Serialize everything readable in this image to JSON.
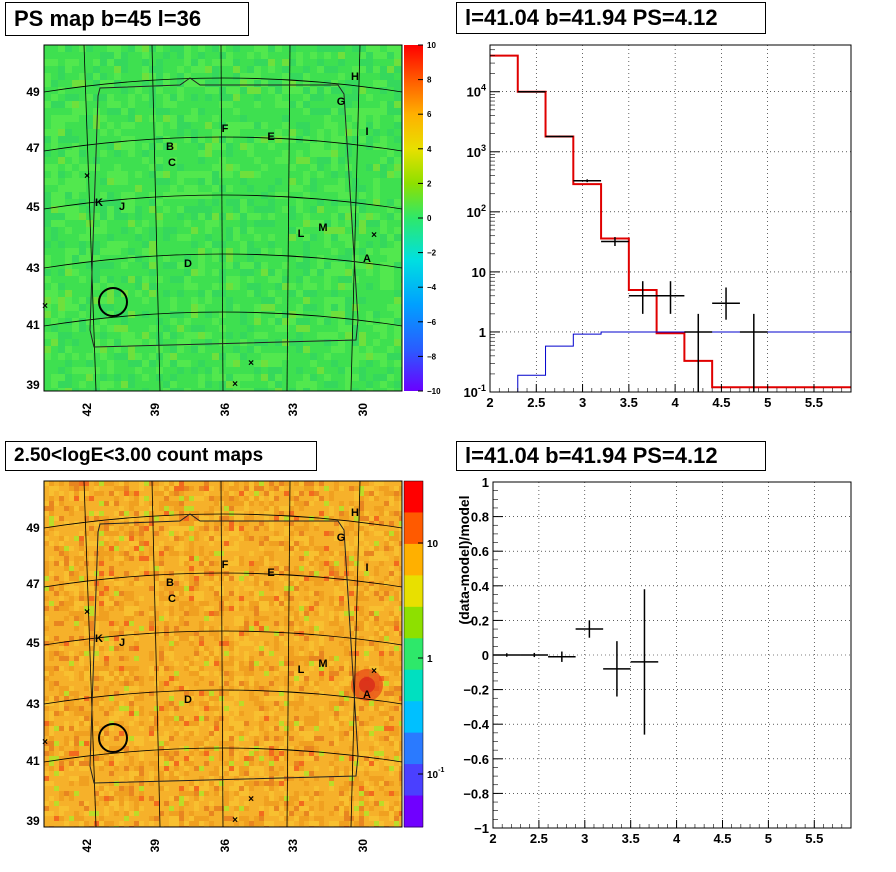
{
  "panels": {
    "ps_map_title": "PS map b=45 l=36",
    "spectrum_title": "l=41.04 b=41.94 PS=4.12",
    "count_map_title": "2.50<logE<3.00 count maps",
    "residual_title": "l=41.04 b=41.94 PS=4.12"
  },
  "chart_data": [
    {
      "type": "heatmap",
      "title": "PS map b=45 l=36",
      "x_ticks": [
        "42",
        "39",
        "36",
        "33",
        "30"
      ],
      "y_ticks": [
        "49",
        "47",
        "45",
        "43",
        "41",
        "39"
      ],
      "colorbar": {
        "range": [
          -10,
          10
        ],
        "ticks": [
          "10",
          "8",
          "6",
          "4",
          "2",
          "0",
          "−2",
          "−4",
          "−6",
          "−8",
          "−10"
        ]
      },
      "source_labels": [
        "H",
        "G",
        "F",
        "E",
        "I",
        "B",
        "C",
        "K",
        "J",
        "L",
        "M",
        "D",
        "A"
      ],
      "colors": {
        "background": "#3ee050",
        "grid": "#000000"
      }
    },
    {
      "type": "line",
      "title": "l=41.04 b=41.94 PS=4.12",
      "x_ticks": [
        "2",
        "2.5",
        "3",
        "3.5",
        "4",
        "4.5",
        "5",
        "5.5"
      ],
      "y_scale": "log",
      "y_ticks": [
        "10^{-1}",
        "1",
        "10",
        "10^{2}",
        "10^{3}",
        "10^{4}"
      ],
      "xlim": [
        2.0,
        5.9
      ],
      "ylim": [
        0.1,
        60000
      ],
      "series": [
        {
          "type": "step",
          "color": "#e00000",
          "x_edges": [
            2.0,
            2.3,
            2.6,
            2.9,
            3.2,
            3.5,
            3.8,
            4.1,
            4.4,
            5.9
          ],
          "values": [
            40000,
            10000,
            1800,
            290,
            36,
            5,
            0.95,
            0.33,
            0.12
          ]
        },
        {
          "type": "step",
          "color": "#0000cc",
          "x_edges": [
            2.0,
            2.3,
            2.6,
            2.9,
            3.2,
            5.9
          ],
          "values": [
            0.09,
            0.19,
            0.58,
            0.92,
            1.0
          ]
        },
        {
          "type": "errorbars",
          "color": "#000000",
          "points": [
            {
              "x": 2.45,
              "y": 10000,
              "xerr": 0.15,
              "ylo": 9800,
              "yhi": 10200
            },
            {
              "x": 2.75,
              "y": 1800,
              "xerr": 0.15,
              "ylo": 1760,
              "yhi": 1840
            },
            {
              "x": 3.05,
              "y": 330,
              "xerr": 0.15,
              "ylo": 312,
              "yhi": 348
            },
            {
              "x": 3.35,
              "y": 32,
              "xerr": 0.15,
              "ylo": 27,
              "yhi": 38
            },
            {
              "x": 3.65,
              "y": 4,
              "xerr": 0.15,
              "ylo": 2,
              "yhi": 7
            },
            {
              "x": 3.95,
              "y": 4,
              "xerr": 0.15,
              "ylo": 2,
              "yhi": 7
            },
            {
              "x": 4.25,
              "y": 1,
              "xerr": 0.15,
              "ylo": 0.1,
              "yhi": 2
            },
            {
              "x": 4.55,
              "y": 3,
              "xerr": 0.15,
              "ylo": 1.6,
              "yhi": 5.5
            },
            {
              "x": 4.85,
              "y": 1,
              "xerr": 0.15,
              "ylo": 0.1,
              "yhi": 2
            }
          ]
        }
      ]
    },
    {
      "type": "heatmap",
      "title": "2.50<logE<3.00 count maps",
      "x_ticks": [
        "42",
        "39",
        "36",
        "33",
        "30"
      ],
      "y_ticks": [
        "49",
        "47",
        "45",
        "43",
        "41",
        "39"
      ],
      "colorbar": {
        "scale": "log",
        "ticks": [
          "10",
          "1",
          "10^{-1}"
        ]
      },
      "source_labels": [
        "H",
        "G",
        "F",
        "E",
        "I",
        "B",
        "C",
        "K",
        "J",
        "L",
        "M",
        "D",
        "A"
      ],
      "colors": {
        "background": "#f6b12a",
        "grid": "#000000"
      }
    },
    {
      "type": "scatter",
      "title": "l=41.04 b=41.94 PS=4.12",
      "ylabel": "(data-model)/model",
      "x_ticks": [
        "2",
        "2.5",
        "3",
        "3.5",
        "4",
        "4.5",
        "5",
        "5.5"
      ],
      "y_ticks": [
        "1",
        "0.8",
        "0.6",
        "0.4",
        "0.2",
        "0",
        "−0.2",
        "−0.4",
        "−0.6",
        "−0.8",
        "−1"
      ],
      "xlim": [
        2.0,
        5.9
      ],
      "ylim": [
        -1,
        1
      ],
      "points": [
        {
          "x": 2.15,
          "y": 0.0,
          "xerr": 0.15,
          "yerr": 0.01
        },
        {
          "x": 2.45,
          "y": 0.0,
          "xerr": 0.15,
          "yerr": 0.012
        },
        {
          "x": 2.75,
          "y": -0.01,
          "xerr": 0.15,
          "yerr": 0.03
        },
        {
          "x": 3.05,
          "y": 0.15,
          "xerr": 0.15,
          "yerr": 0.05
        },
        {
          "x": 3.35,
          "y": -0.08,
          "xerr": 0.15,
          "yerr": 0.16
        },
        {
          "x": 3.65,
          "y": -0.04,
          "xerr": 0.15,
          "yerr": 0.42
        }
      ]
    }
  ]
}
